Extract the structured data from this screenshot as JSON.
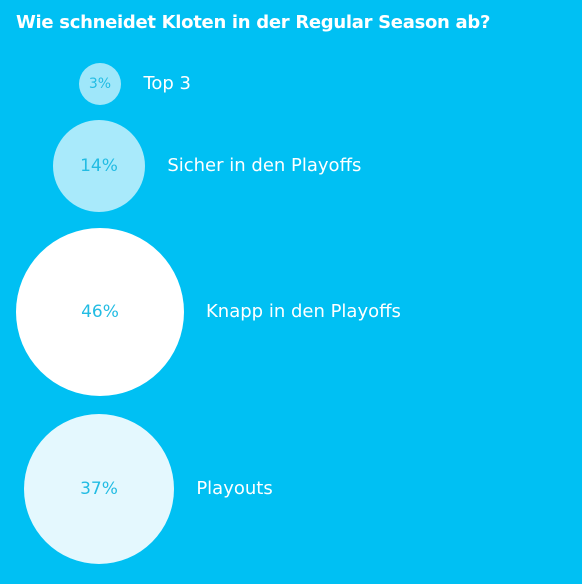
{
  "title": "Wie schneidet Kloten in der Regular Season ab?",
  "colors": {
    "background": "#00C0F3",
    "value_text": "#22BCE3",
    "label_text": "#FFFFFF"
  },
  "chart_data": {
    "type": "bubble",
    "title": "Wie schneidet Kloten in der Regular Season ab?",
    "categories": [
      "Top 3",
      "Sicher in den Playoffs",
      "Knapp in den Playoffs",
      "Playouts"
    ],
    "values": [
      3,
      14,
      46,
      37
    ],
    "value_labels": [
      "3%",
      "14%",
      "46%",
      "37%"
    ],
    "fill_colors": [
      "#9FE7FA",
      "#A9EAFB",
      "#FFFFFF",
      "#E4F8FE"
    ]
  }
}
